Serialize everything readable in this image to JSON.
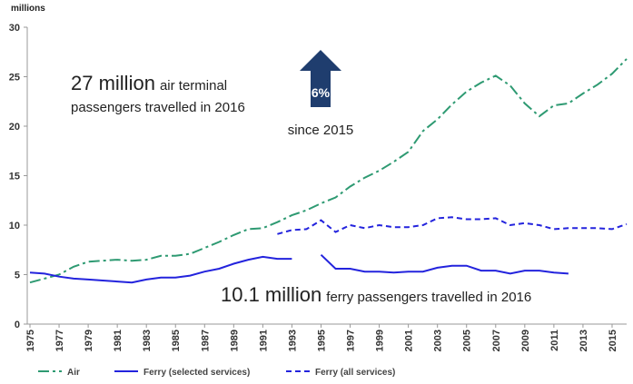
{
  "chart_data": {
    "type": "line",
    "y_label": "millions",
    "x": [
      1975,
      1976,
      1977,
      1978,
      1979,
      1980,
      1981,
      1982,
      1983,
      1984,
      1985,
      1986,
      1987,
      1988,
      1989,
      1990,
      1991,
      1992,
      1993,
      1994,
      1995,
      1996,
      1997,
      1998,
      1999,
      2000,
      2001,
      2002,
      2003,
      2004,
      2005,
      2006,
      2007,
      2008,
      2009,
      2010,
      2011,
      2012,
      2013,
      2014,
      2015,
      2016
    ],
    "series": [
      {
        "name": "Air",
        "color": "#2e9a72",
        "dash": "dashdot",
        "values": [
          4.2,
          4.6,
          5.0,
          5.8,
          6.3,
          6.4,
          6.5,
          6.4,
          6.5,
          6.9,
          6.9,
          7.1,
          7.7,
          8.3,
          9.0,
          9.6,
          9.7,
          10.3,
          11.0,
          11.5,
          12.2,
          12.8,
          13.9,
          14.8,
          15.5,
          16.4,
          17.4,
          19.5,
          20.7,
          22.2,
          23.5,
          24.4,
          25.1,
          24.1,
          22.3,
          21.0,
          22.1,
          22.3,
          23.3,
          24.2,
          25.3,
          26.8
        ]
      },
      {
        "name": "Ferry (selected services)",
        "color": "#2323dd",
        "dash": "solid",
        "values": [
          5.2,
          5.1,
          4.8,
          4.6,
          4.5,
          4.4,
          4.3,
          4.2,
          4.5,
          4.7,
          4.7,
          4.9,
          5.3,
          5.6,
          6.1,
          6.5,
          6.8,
          6.6,
          6.6,
          null,
          7.0,
          5.6,
          5.6,
          5.3,
          5.3,
          5.2,
          5.3,
          5.3,
          5.7,
          5.9,
          5.9,
          5.4,
          5.4,
          5.1,
          5.4,
          5.4,
          5.2,
          5.1,
          null,
          null,
          null,
          null
        ]
      },
      {
        "name": "Ferry (all services)",
        "color": "#2323dd",
        "dash": "dashed",
        "values": [
          null,
          null,
          null,
          null,
          null,
          null,
          null,
          null,
          null,
          null,
          null,
          null,
          null,
          null,
          null,
          null,
          null,
          9.1,
          9.5,
          9.6,
          10.5,
          9.3,
          10.0,
          9.7,
          10.0,
          9.8,
          9.8,
          10.0,
          10.7,
          10.8,
          10.6,
          10.6,
          10.7,
          10.0,
          10.2,
          10.0,
          9.6,
          9.7,
          9.7,
          9.7,
          9.6,
          10.1
        ]
      }
    ],
    "xlim": [
      1975,
      2016
    ],
    "xticks": [
      1975,
      1977,
      1979,
      1981,
      1983,
      1985,
      1987,
      1989,
      1991,
      1993,
      1995,
      1997,
      1999,
      2001,
      2003,
      2005,
      2007,
      2009,
      2011,
      2013,
      2015
    ],
    "ylim": [
      0,
      30
    ],
    "yticks": [
      0,
      5,
      10,
      15,
      20,
      25,
      30
    ],
    "legend": "bottom",
    "annotations": {
      "air_big": "27 million",
      "air_small": "air terminal",
      "air_line2": "passengers travelled in 2016",
      "arrow_text": "6%",
      "since": "since 2015",
      "ferry_big": "10.1 million",
      "ferry_small": "ferry passengers travelled in 2016"
    }
  }
}
